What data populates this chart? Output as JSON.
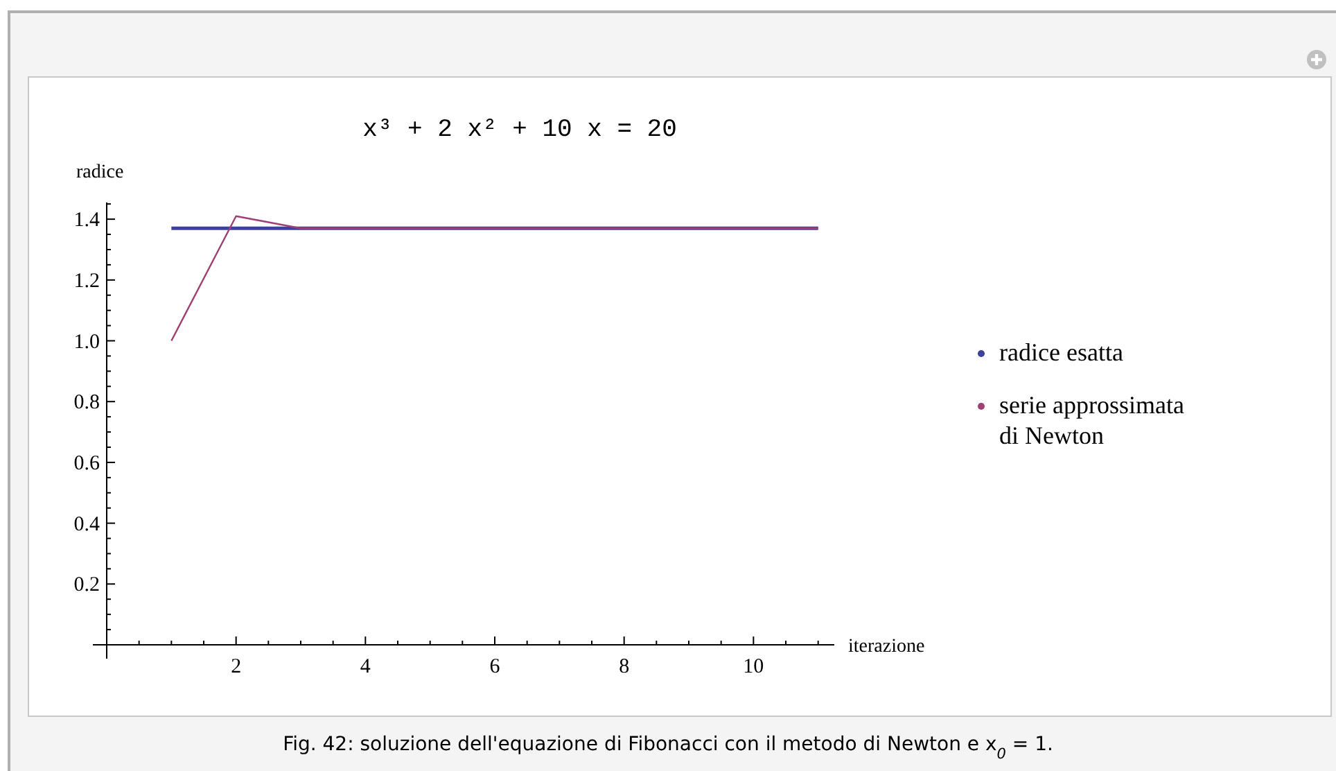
{
  "chart_data": {
    "type": "line",
    "title": "x³ + 2 x² + 10 x = 20",
    "xlabel": "iterazione",
    "ylabel": "radice",
    "annotations": [
      "Fig. 42: soluzione dell'equazione di Fibonacci con il metodo di Newton e x$_{0}$ = 1."
    ],
    "xlim": [
      0,
      11.25
    ],
    "ylim": [
      0,
      1.455
    ],
    "xticks": [
      {
        "value": 0.5,
        "label": null
      },
      {
        "value": 1,
        "label": null
      },
      {
        "value": 1.5,
        "label": null
      },
      2,
      {
        "value": 2.5,
        "label": null
      },
      {
        "value": 3,
        "label": null
      },
      {
        "value": 3.5,
        "label": null
      },
      4,
      {
        "value": 4.5,
        "label": null
      },
      {
        "value": 5,
        "label": null
      },
      {
        "value": 5.5,
        "label": null
      },
      6,
      {
        "value": 6.5,
        "label": null
      },
      {
        "value": 7,
        "label": null
      },
      {
        "value": 7.5,
        "label": null
      },
      8,
      {
        "value": 8.5,
        "label": null
      },
      {
        "value": 9,
        "label": null
      },
      {
        "value": 9.5,
        "label": null
      },
      10,
      {
        "value": 10.5,
        "label": null
      },
      {
        "value": 11,
        "label": null
      }
    ],
    "yticks": [
      {
        "value": 0.05,
        "label": null
      },
      {
        "value": 0.1,
        "label": null
      },
      {
        "value": 0.15,
        "label": null
      },
      0.2,
      {
        "value": 0.25,
        "label": null
      },
      {
        "value": 0.3,
        "label": null
      },
      {
        "value": 0.35,
        "label": null
      },
      0.4,
      {
        "value": 0.45,
        "label": null
      },
      {
        "value": 0.5,
        "label": null
      },
      {
        "value": 0.55,
        "label": null
      },
      0.6,
      {
        "value": 0.65,
        "label": null
      },
      {
        "value": 0.7,
        "label": null
      },
      {
        "value": 0.75,
        "label": null
      },
      0.8,
      {
        "value": 0.85,
        "label": null
      },
      {
        "value": 0.9,
        "label": null
      },
      {
        "value": 0.95,
        "label": null
      },
      {
        "value": 1,
        "label": "1.0"
      },
      {
        "value": 1.05,
        "label": null
      },
      {
        "value": 1.1,
        "label": null
      },
      {
        "value": 1.15,
        "label": null
      },
      1.2,
      {
        "value": 1.25,
        "label": null
      },
      {
        "value": 1.3,
        "label": null
      },
      {
        "value": 1.35,
        "label": null
      },
      1.4,
      {
        "value": 1.45,
        "label": null
      }
    ],
    "legend": "right",
    "grid": false,
    "marker": "none",
    "line_style": "solid",
    "series": [
      {
        "name": "radice esatta",
        "color": "#3f3f9f",
        "x": [
          1,
          11
        ],
        "values": [
          1.37,
          1.37
        ]
      },
      {
        "name": "serie approssimata di Newton",
        "color": "#9f3f73",
        "x": [
          1,
          2,
          3,
          4,
          5,
          6,
          7,
          8,
          9,
          10,
          11
        ],
        "values": [
          1,
          1.41,
          1.37,
          1.37,
          1.37,
          1.37,
          1.37,
          1.37,
          1.37,
          1.37,
          1.37
        ]
      }
    ]
  }
}
